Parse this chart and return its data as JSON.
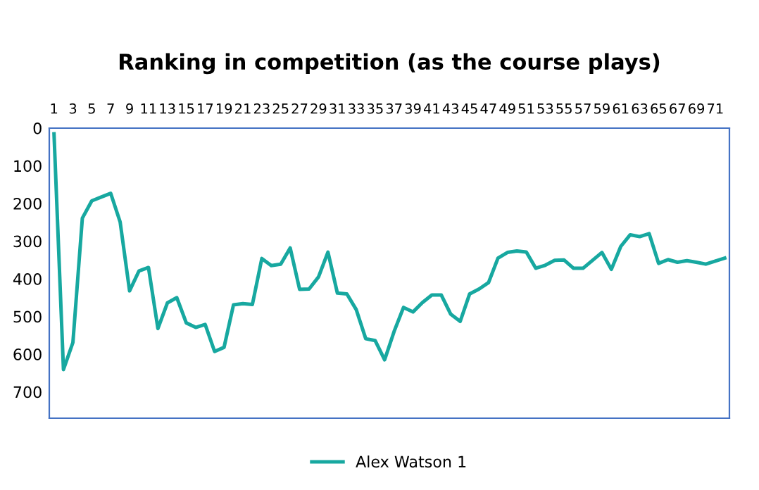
{
  "chart_data": {
    "type": "line",
    "title": "Ranking in competition (as the course plays)",
    "categories": [
      "1",
      null,
      "3",
      null,
      "5",
      null,
      "7",
      null,
      "9",
      null,
      "11",
      null,
      "13",
      null,
      "15",
      null,
      "17",
      null,
      "19",
      null,
      "21",
      null,
      "23",
      null,
      "25",
      null,
      "27",
      null,
      "29",
      null,
      "31",
      null,
      "33",
      null,
      "35",
      null,
      "37",
      null,
      "39",
      null,
      "41",
      null,
      "43",
      null,
      "45",
      null,
      "47",
      null,
      "49",
      null,
      "51",
      null,
      "53",
      null,
      "55",
      null,
      "57",
      null,
      "59",
      null,
      "61",
      null,
      "63",
      null,
      "65",
      null,
      "67",
      null,
      "69",
      null,
      "71",
      null
    ],
    "series": [
      {
        "name": "Alex Watson 1",
        "color": "#17a8a0",
        "values": [
          15,
          641,
          569,
          239,
          193,
          183,
          173,
          249,
          432,
          379,
          370,
          532,
          464,
          450,
          517,
          529,
          521,
          593,
          582,
          469,
          466,
          468,
          346,
          365,
          361,
          318,
          428,
          427,
          395,
          329,
          438,
          440,
          482,
          559,
          564,
          615,
          540,
          476,
          488,
          463,
          443,
          443,
          494,
          513,
          440,
          427,
          410,
          345,
          330,
          326,
          329,
          372,
          364,
          351,
          350,
          372,
          372,
          351,
          330,
          375,
          314,
          283,
          288,
          280,
          359,
          349,
          356,
          352,
          356,
          361,
          353,
          345
        ]
      }
    ],
    "ylim": [
      770,
      0
    ],
    "yticks": [
      0,
      100,
      200,
      300,
      400,
      500,
      600,
      700
    ],
    "legend": "bottom",
    "grid": false,
    "marker": "none",
    "line_style": "solid"
  }
}
